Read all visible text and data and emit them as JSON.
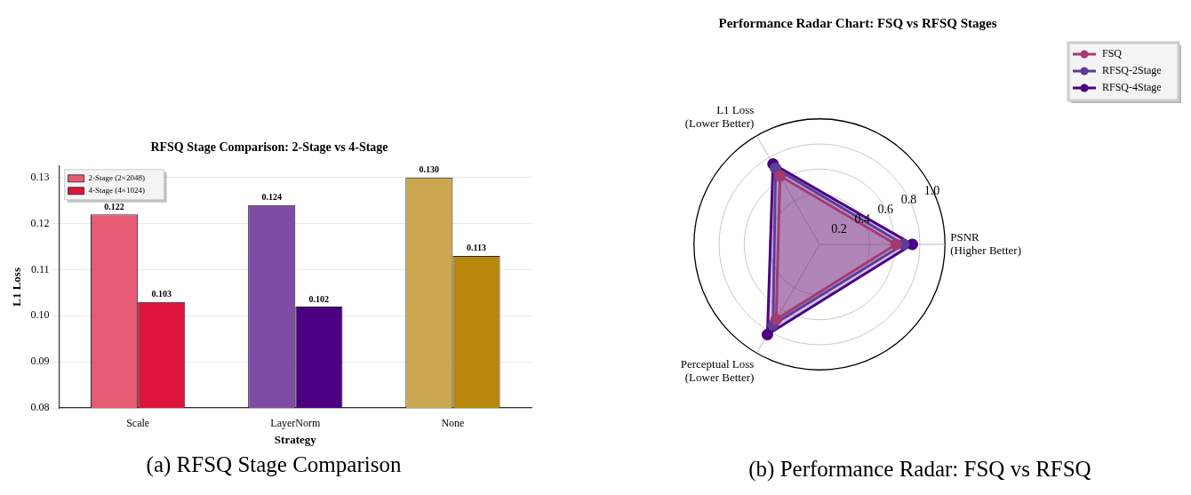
{
  "chart_data": [
    {
      "type": "bar",
      "title": "RFSQ Stage Comparison: 2-Stage vs 4-Stage",
      "xlabel": "Strategy",
      "ylabel": "L1 Loss",
      "categories": [
        "Scale",
        "LayerNorm",
        "None"
      ],
      "series": [
        {
          "name": "2-Stage (2×2048)",
          "color": "#e75a74",
          "colors": [
            "#e75a74",
            "#7e4ca5",
            "#cca752"
          ],
          "values": [
            0.122,
            0.124,
            0.13
          ],
          "value_labels": [
            "0.122",
            "0.124",
            "0.130"
          ]
        },
        {
          "name": "4-Stage (4×1024)",
          "color": "#dc143c",
          "colors": [
            "#dc143c",
            "#4b0082",
            "#b8860b"
          ],
          "values": [
            0.103,
            0.102,
            0.113
          ],
          "value_labels": [
            "0.103",
            "0.102",
            "0.113"
          ]
        }
      ],
      "ylim": [
        0.08,
        0.1325
      ],
      "yticks": [
        0.08,
        0.09,
        {
          "value": 0.1,
          "label": "0.10"
        },
        0.11,
        0.12,
        0.13
      ],
      "grid": "y",
      "legend": "top left",
      "annotations": [
        "(a) RFSQ Stage Comparison"
      ]
    },
    {
      "type": "radar",
      "title": "Performance Radar Chart: FSQ vs RFSQ Stages",
      "categories": [
        "L1 Loss\n(Lower Better)",
        "PSNR\n(Higher Better)",
        "Perceptual Loss\n(Lower Better)"
      ],
      "series": [
        {
          "name": "FSQ",
          "color": "#a23b72",
          "values": [
            0.63,
            0.61,
            0.69
          ]
        },
        {
          "name": "RFSQ-2Stage",
          "color": "#5c3d99",
          "values": [
            0.7,
            0.67,
            0.74
          ]
        },
        {
          "name": "RFSQ-4Stage",
          "color": "#4b0082",
          "values": [
            0.74,
            0.74,
            0.83
          ]
        }
      ],
      "ylim": [
        0,
        1.0
      ],
      "yticks": [
        0.2,
        0.4,
        0.6,
        0.8,
        {
          "value": 1,
          "label": "1.0"
        }
      ],
      "grid": true,
      "legend": "top right",
      "marker": "circle",
      "line_style": "solid",
      "annotations": [
        "(b) Performance Radar: FSQ vs RFSQ"
      ]
    }
  ]
}
